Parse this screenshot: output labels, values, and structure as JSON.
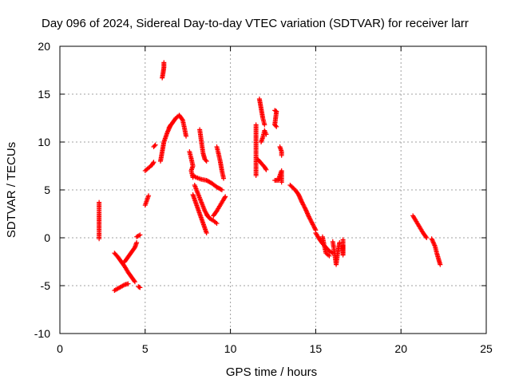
{
  "chart_data": {
    "type": "scatter",
    "title": "Day 096 of 2024, Sidereal Day-to-day VTEC variation (SDTVAR) for receiver larr",
    "xlabel": "GPS time / hours",
    "ylabel": "SDTVAR / TECUs",
    "xlim": [
      0,
      25
    ],
    "ylim": [
      -10,
      20
    ],
    "xticks": [
      0,
      5,
      10,
      15,
      20,
      25
    ],
    "yticks": [
      -10,
      -5,
      0,
      5,
      10,
      15,
      20
    ],
    "xtick_labels": [
      "0",
      "5",
      "10",
      "15",
      "20",
      "25"
    ],
    "ytick_labels": [
      "-10",
      "-5",
      "0",
      "5",
      "10",
      "15",
      "20"
    ],
    "grid": true,
    "marker": "+",
    "color": "#ff0000",
    "segments": [
      [
        [
          2.3,
          3.7
        ],
        [
          2.3,
          3.3
        ],
        [
          2.3,
          1.8
        ],
        [
          2.3,
          1.0
        ],
        [
          2.3,
          -0.1
        ]
      ],
      [
        [
          3.2,
          -1.6
        ],
        [
          3.4,
          -2.0
        ],
        [
          3.6,
          -2.5
        ],
        [
          3.8,
          -3.0
        ],
        [
          4.0,
          -3.6
        ],
        [
          4.2,
          -4.1
        ],
        [
          4.4,
          -4.6
        ]
      ],
      [
        [
          3.2,
          -5.5
        ],
        [
          3.4,
          -5.3
        ],
        [
          3.6,
          -5.1
        ],
        [
          3.8,
          -4.9
        ],
        [
          4.0,
          -4.8
        ]
      ],
      [
        [
          3.8,
          -2.5
        ],
        [
          4.0,
          -2.0
        ],
        [
          4.2,
          -1.5
        ],
        [
          4.4,
          -1.0
        ],
        [
          4.5,
          -0.5
        ]
      ],
      [
        [
          4.6,
          -5.1
        ],
        [
          4.7,
          -5.2
        ]
      ],
      [
        [
          4.5,
          0.1
        ],
        [
          4.7,
          0.3
        ]
      ],
      [
        [
          5.0,
          3.4
        ],
        [
          5.1,
          3.9
        ],
        [
          5.2,
          4.4
        ]
      ],
      [
        [
          5.0,
          7.0
        ],
        [
          5.2,
          7.3
        ],
        [
          5.4,
          7.6
        ],
        [
          5.5,
          7.9
        ]
      ],
      [
        [
          5.5,
          9.5
        ],
        [
          5.6,
          9.7
        ]
      ],
      [
        [
          6.0,
          16.7
        ],
        [
          6.05,
          17.2
        ],
        [
          6.1,
          17.8
        ],
        [
          6.1,
          18.3
        ]
      ],
      [
        [
          5.9,
          8.0
        ],
        [
          6.0,
          9.0
        ],
        [
          6.1,
          10.0
        ],
        [
          6.3,
          11.0
        ],
        [
          6.5,
          11.8
        ]
      ],
      [
        [
          6.4,
          11.5
        ],
        [
          6.6,
          12.0
        ],
        [
          6.8,
          12.5
        ],
        [
          7.0,
          12.8
        ],
        [
          7.2,
          12.3
        ],
        [
          7.3,
          11.5
        ],
        [
          7.4,
          10.6
        ]
      ],
      [
        [
          7.6,
          9.0
        ],
        [
          7.7,
          8.3
        ],
        [
          7.8,
          7.5
        ],
        [
          7.7,
          7.0
        ],
        [
          7.8,
          6.3
        ]
      ],
      [
        [
          7.8,
          6.5
        ],
        [
          8.0,
          6.3
        ],
        [
          8.3,
          6.1
        ],
        [
          8.6,
          6.0
        ],
        [
          8.9,
          5.7
        ],
        [
          9.2,
          5.3
        ],
        [
          9.5,
          5.0
        ]
      ],
      [
        [
          7.8,
          4.5
        ],
        [
          8.0,
          3.5
        ],
        [
          8.2,
          2.5
        ],
        [
          8.4,
          1.5
        ],
        [
          8.6,
          0.5
        ]
      ],
      [
        [
          7.9,
          5.5
        ],
        [
          8.1,
          4.6
        ],
        [
          8.3,
          3.7
        ],
        [
          8.5,
          2.8
        ],
        [
          8.7,
          2.2
        ]
      ],
      [
        [
          8.2,
          11.3
        ],
        [
          8.3,
          10.0
        ],
        [
          8.4,
          8.8
        ],
        [
          8.5,
          8.2
        ],
        [
          8.6,
          8.0
        ]
      ],
      [
        [
          8.6,
          2.4
        ],
        [
          8.8,
          2.0
        ],
        [
          9.0,
          1.8
        ],
        [
          9.2,
          1.5
        ]
      ],
      [
        [
          9.2,
          9.5
        ],
        [
          9.3,
          8.8
        ],
        [
          9.4,
          8.0
        ],
        [
          9.5,
          7.0
        ],
        [
          9.6,
          6.2
        ]
      ],
      [
        [
          9.0,
          2.3
        ],
        [
          9.2,
          2.8
        ],
        [
          9.4,
          3.4
        ],
        [
          9.6,
          4.0
        ],
        [
          9.7,
          4.3
        ]
      ],
      [
        [
          11.5,
          6.5
        ],
        [
          11.5,
          8.5
        ],
        [
          11.5,
          11.8
        ]
      ],
      [
        [
          11.6,
          8.2
        ],
        [
          11.8,
          7.8
        ],
        [
          12.0,
          7.4
        ],
        [
          12.1,
          7.1
        ]
      ],
      [
        [
          11.7,
          14.5
        ],
        [
          11.8,
          13.5
        ],
        [
          11.9,
          12.5
        ],
        [
          12.0,
          11.8
        ]
      ],
      [
        [
          11.8,
          10.0
        ],
        [
          11.9,
          10.5
        ],
        [
          12.0,
          11.2
        ],
        [
          12.1,
          10.8
        ]
      ],
      [
        [
          12.6,
          13.3
        ],
        [
          12.7,
          13.2
        ],
        [
          12.6,
          11.8
        ],
        [
          12.7,
          11.6
        ]
      ],
      [
        [
          12.9,
          9.5
        ],
        [
          13.0,
          9.0
        ],
        [
          13.0,
          8.6
        ]
      ],
      [
        [
          12.6,
          6.0
        ],
        [
          12.8,
          6.0
        ],
        [
          13.0,
          7.0
        ],
        [
          13.0,
          5.8
        ]
      ],
      [
        [
          13.5,
          5.5
        ],
        [
          13.8,
          5.0
        ],
        [
          14.0,
          4.5
        ],
        [
          14.2,
          3.7
        ],
        [
          14.4,
          3.0
        ],
        [
          14.6,
          2.2
        ],
        [
          14.8,
          1.5
        ],
        [
          15.0,
          0.8
        ]
      ],
      [
        [
          15.0,
          0.5
        ],
        [
          15.2,
          -0.1
        ],
        [
          15.4,
          -0.6
        ],
        [
          15.6,
          -1.0
        ],
        [
          15.8,
          -1.4
        ],
        [
          16.0,
          -1.6
        ]
      ],
      [
        [
          15.4,
          0.1
        ],
        [
          15.5,
          -0.8
        ],
        [
          15.6,
          -1.6
        ],
        [
          15.8,
          -1.9
        ]
      ],
      [
        [
          16.0,
          -0.4
        ],
        [
          16.1,
          -1.5
        ],
        [
          16.2,
          -2.8
        ],
        [
          16.3,
          -1.5
        ],
        [
          16.4,
          -0.5
        ]
      ],
      [
        [
          16.6,
          -0.8
        ],
        [
          16.6,
          -1.8
        ],
        [
          16.6,
          -0.2
        ]
      ],
      [
        [
          20.7,
          2.3
        ],
        [
          20.9,
          1.7
        ],
        [
          21.1,
          1.1
        ],
        [
          21.3,
          0.5
        ],
        [
          21.5,
          0.0
        ]
      ],
      [
        [
          21.8,
          -0.1
        ],
        [
          22.0,
          -0.9
        ],
        [
          22.1,
          -1.6
        ],
        [
          22.2,
          -2.2
        ],
        [
          22.3,
          -2.8
        ]
      ]
    ]
  }
}
